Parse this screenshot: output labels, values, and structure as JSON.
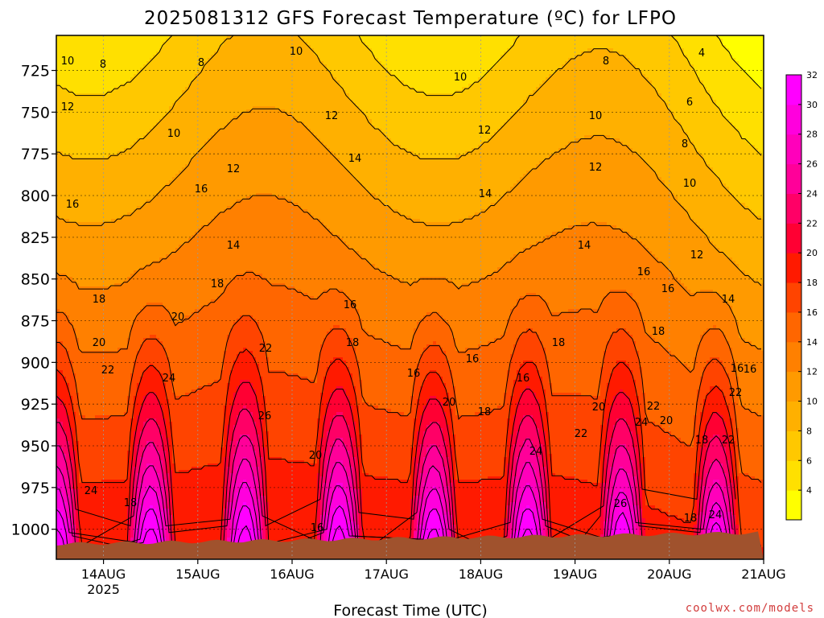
{
  "chart_data": {
    "type": "heatmap",
    "title": "2025081312 GFS Forecast Temperature (ºC) for LFPO",
    "xlabel": "Forecast Time (UTC)",
    "ylabel": "",
    "x_ticks": [
      "14AUG",
      "15AUG",
      "16AUG",
      "17AUG",
      "18AUG",
      "19AUG",
      "20AUG",
      "21AUG"
    ],
    "x_year_label": "2025",
    "x_range_days": [
      13.5,
      21.0
    ],
    "y_ticks": [
      725,
      750,
      775,
      800,
      825,
      850,
      875,
      900,
      925,
      950,
      975,
      1000
    ],
    "y_range": [
      704,
      1018
    ],
    "grid": true,
    "colorbar": {
      "levels": [
        4,
        6,
        8,
        10,
        12,
        14,
        16,
        18,
        20,
        22,
        24,
        26,
        28,
        30,
        32
      ],
      "colors": [
        "#ffff00",
        "#ffe000",
        "#ffc800",
        "#ffb000",
        "#ff9a00",
        "#ff8000",
        "#ff6600",
        "#ff4400",
        "#ff1a00",
        "#ff0033",
        "#ff0066",
        "#ff0099",
        "#ff00bb",
        "#ff00dd",
        "#ff00ff"
      ]
    },
    "contour_labels": [
      "10",
      "8",
      "8",
      "10",
      "10",
      "8",
      "4",
      "12",
      "12",
      "12",
      "10",
      "6",
      "10",
      "8",
      "12",
      "14",
      "12",
      "14",
      "10",
      "16",
      "16",
      "14",
      "12",
      "14",
      "18",
      "16",
      "18",
      "16",
      "20",
      "16",
      "14",
      "20",
      "22",
      "18",
      "16",
      "18",
      "18",
      "22",
      "24",
      "16",
      "16",
      "16",
      "20",
      "18",
      "20",
      "26",
      "20",
      "22",
      "24",
      "20",
      "24",
      "22",
      "24",
      "26",
      "22",
      "18",
      "24",
      "22",
      "18",
      "16",
      "18",
      "16"
    ],
    "series": [
      {
        "x": [
          13.5,
          13.6,
          13.8,
          14.0,
          14.3,
          14.6,
          14.8,
          15.0,
          15.3,
          15.5,
          15.7,
          15.9,
          16.1,
          16.3,
          16.5,
          16.7,
          16.9,
          17.1,
          17.3,
          17.5,
          17.7,
          17.9,
          18.1,
          18.3,
          18.5,
          18.7,
          18.9,
          19.1,
          19.3,
          19.5,
          19.7,
          19.9,
          20.1,
          20.3,
          20.5,
          20.7,
          20.9,
          21.0
        ],
        "y": [
          14,
          13,
          12,
          13,
          12,
          11,
          11,
          12,
          11,
          10,
          11,
          12,
          12,
          13,
          13,
          14,
          14,
          13,
          14,
          14,
          14,
          13,
          12,
          13,
          12,
          12,
          11,
          11,
          11,
          10,
          10,
          9,
          9,
          8,
          7,
          7,
          7,
          7
        ]
      },
      {
        "x": [
          13.5,
          13.6,
          13.8,
          14.0,
          14.3,
          14.6,
          14.8,
          15.0,
          15.3,
          15.5,
          15.7,
          15.9,
          16.1,
          16.3,
          16.5,
          16.7,
          16.9,
          17.1,
          17.3,
          17.5,
          17.7,
          17.9,
          18.1,
          18.3,
          18.5,
          18.7,
          18.9,
          19.1,
          19.3,
          19.5,
          19.7,
          19.9,
          20.1,
          20.3,
          20.5,
          20.7,
          20.9,
          21.0
        ],
        "y": [
          19,
          20,
          21,
          22,
          24,
          27,
          30,
          30,
          27,
          25,
          27,
          30,
          28,
          24,
          22,
          24,
          27,
          22,
          19,
          20,
          24,
          28,
          23,
          17,
          17,
          20,
          23,
          22,
          19,
          20,
          24,
          27,
          22,
          18,
          17,
          21,
          25,
          20
        ]
      }
    ]
  },
  "credit": "coolwx.com/models"
}
